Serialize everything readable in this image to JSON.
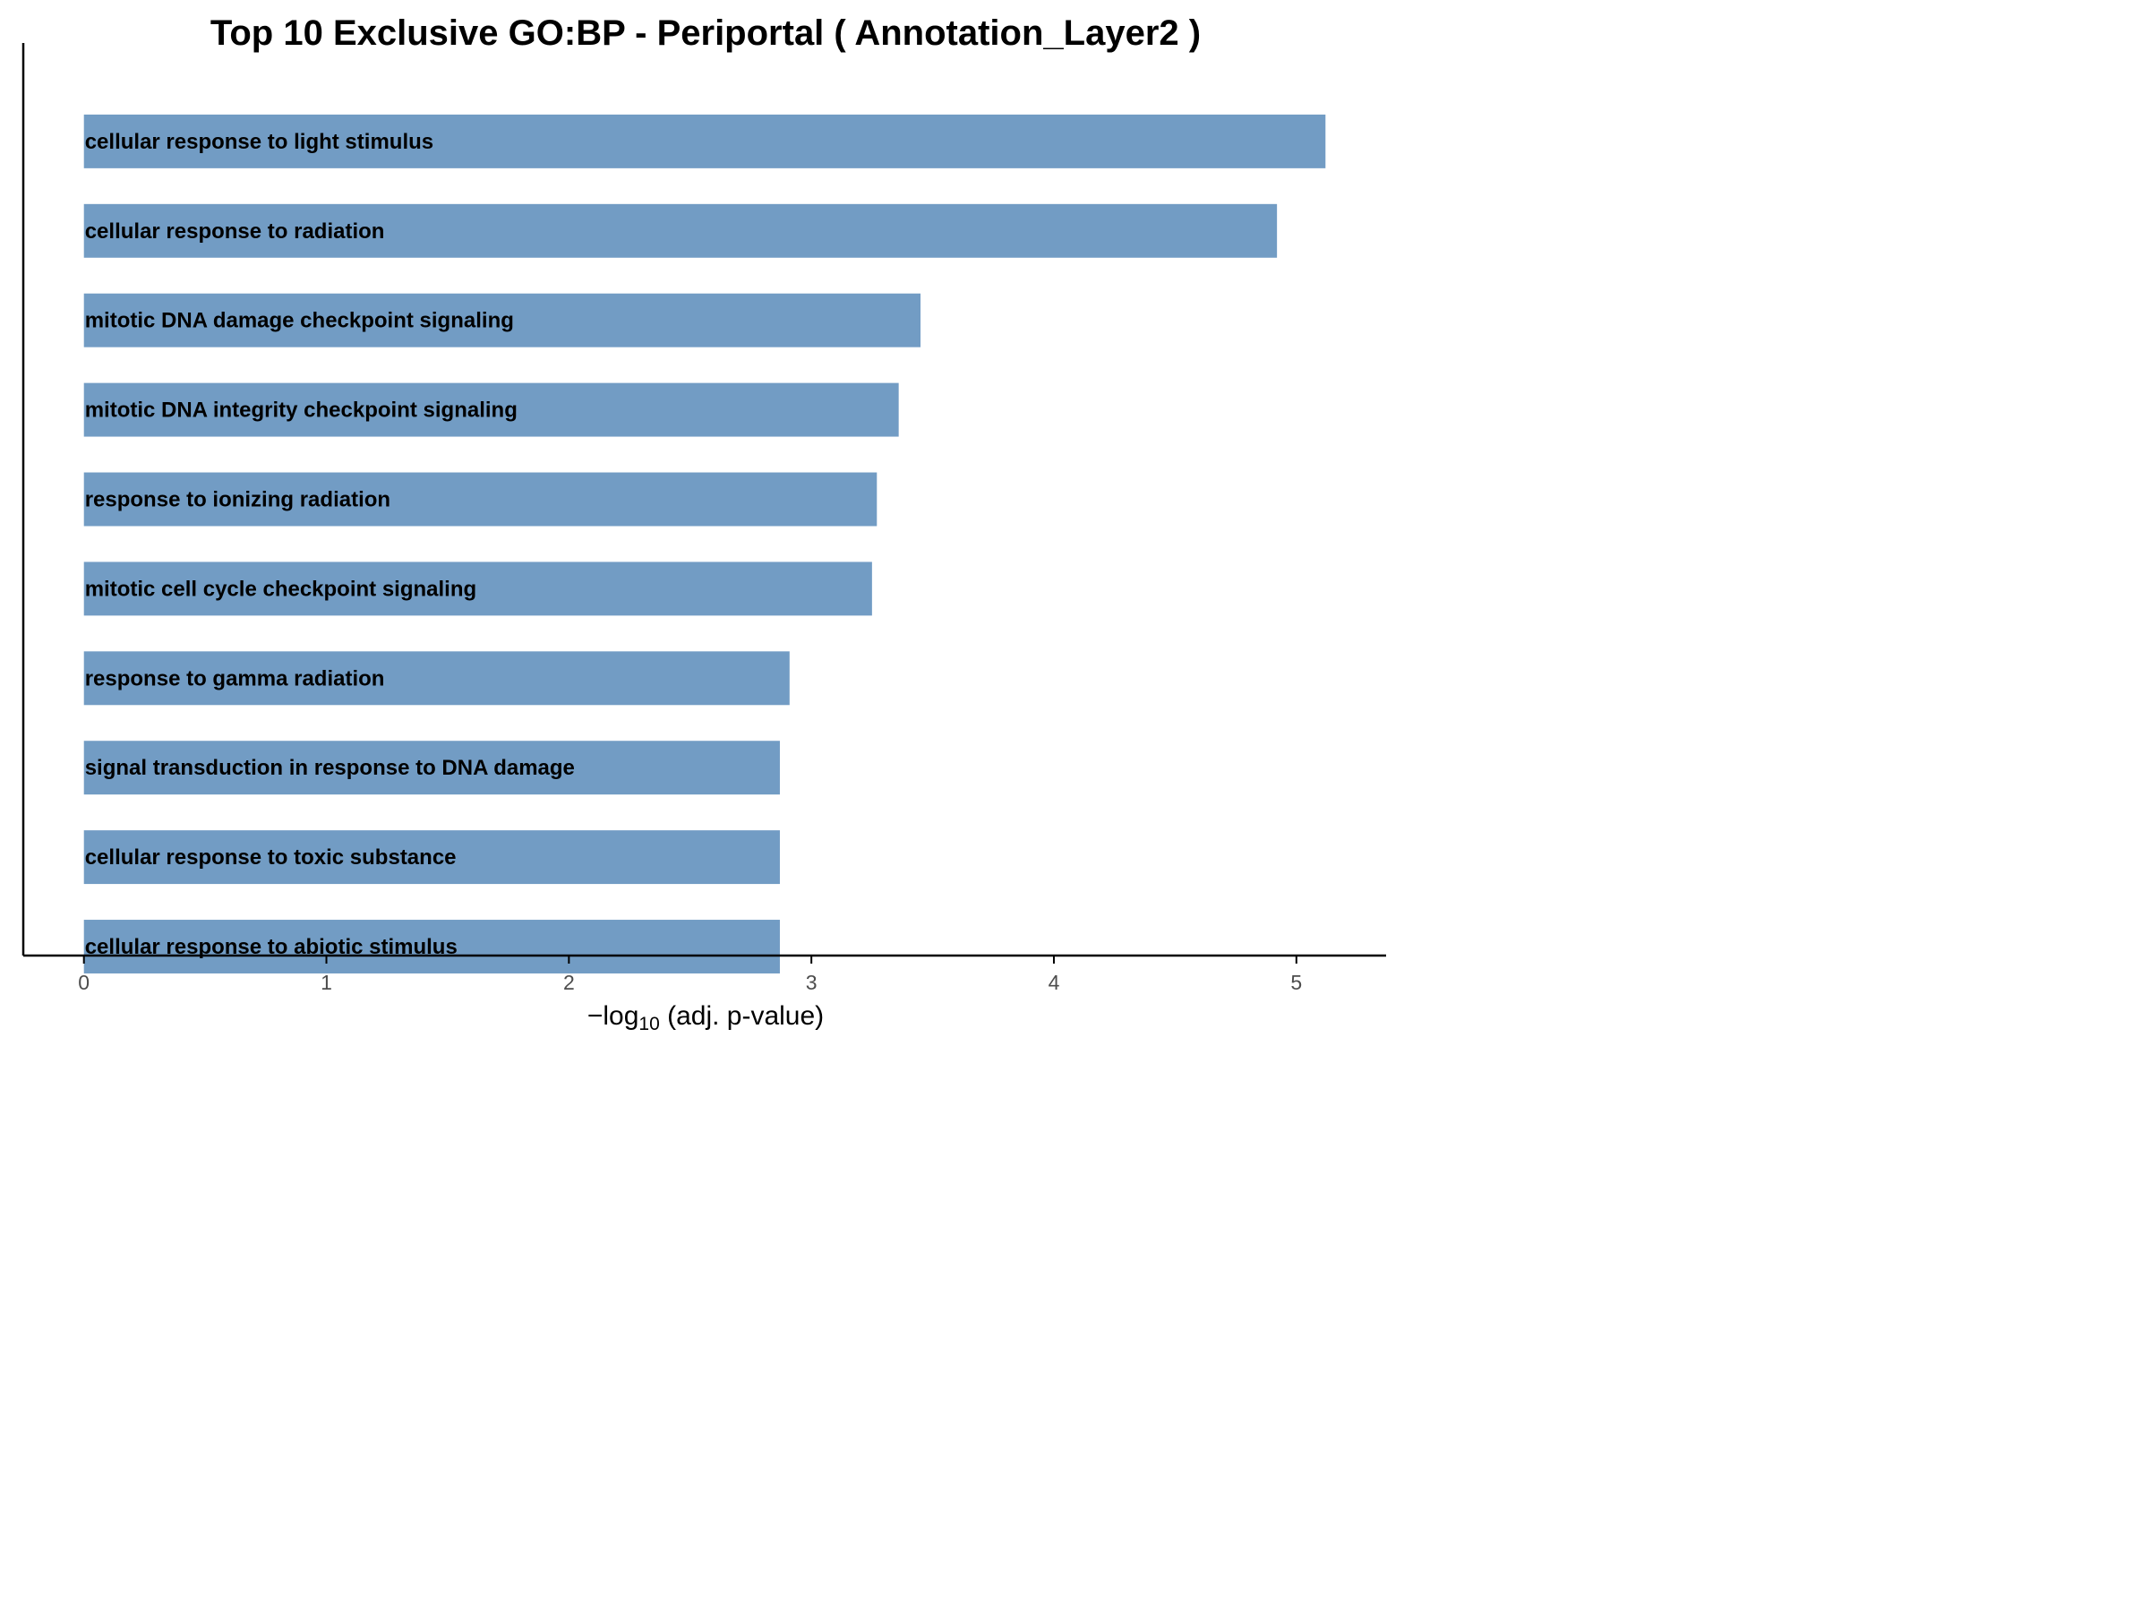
{
  "chart_data": {
    "type": "bar",
    "orientation": "horizontal",
    "title": "Top 10 Exclusive GO:BP - Periportal ( Annotation_Layer2 )",
    "xlabel": {
      "prefix": "−log",
      "subscript": "10",
      "suffix": " (adj. p-value)"
    },
    "ylabel": "",
    "categories": [
      "cellular response to light stimulus",
      "cellular response to radiation",
      "mitotic DNA damage checkpoint signaling",
      "mitotic DNA integrity checkpoint signaling",
      "response to ionizing radiation",
      "mitotic cell cycle checkpoint signaling",
      "response to gamma radiation",
      "signal transduction in response to DNA damage",
      "cellular response to toxic substance",
      "cellular response to abiotic stimulus"
    ],
    "values": [
      5.12,
      4.92,
      3.45,
      3.36,
      3.27,
      3.25,
      2.91,
      2.87,
      2.87,
      2.87
    ],
    "xlim": [
      -0.25,
      5.37
    ],
    "xticks": [
      "0",
      "1",
      "2",
      "3",
      "4",
      "5"
    ],
    "bar_color": "#729CC4",
    "grid": false
  }
}
